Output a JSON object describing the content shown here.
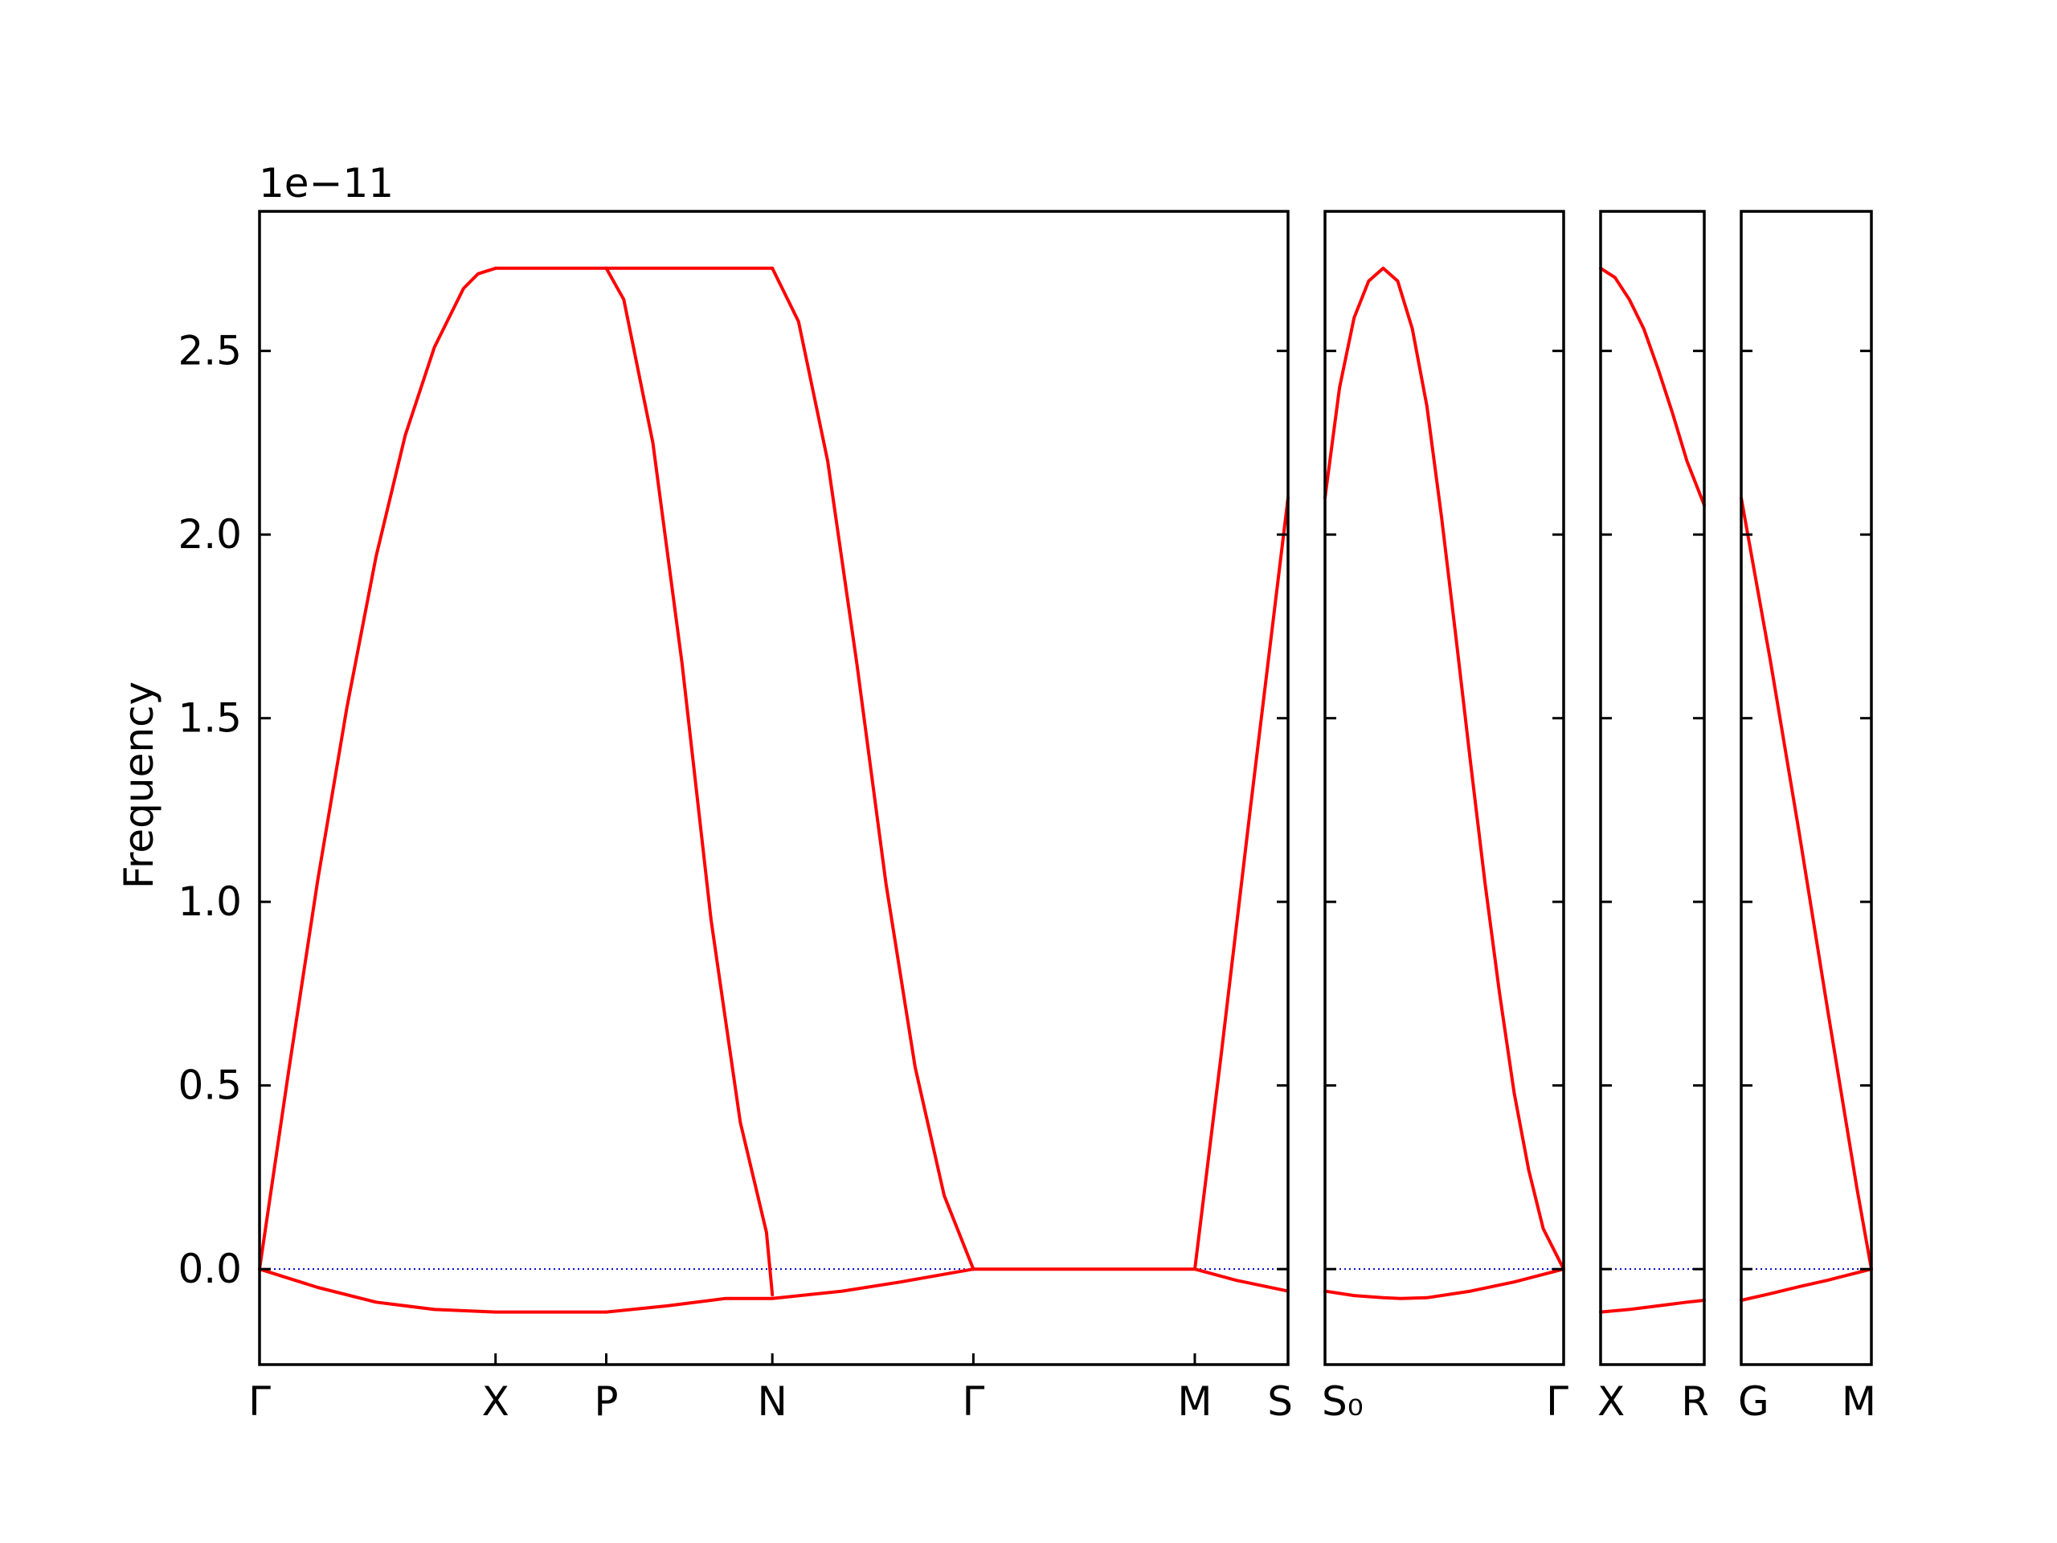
{
  "chart_data": {
    "type": "line",
    "ylabel": "Frequency",
    "y_offset_label": "1e−11",
    "ylim": [
      -0.26,
      2.88
    ],
    "yticks": [
      {
        "value": 0.0,
        "label": "0.0"
      },
      {
        "value": 0.5,
        "label": "0.5"
      },
      {
        "value": 1.0,
        "label": "1.0"
      },
      {
        "value": 1.5,
        "label": "1.5"
      },
      {
        "value": 2.0,
        "label": "2.0"
      },
      {
        "value": 2.5,
        "label": "2.5"
      }
    ],
    "line_color": "#ff0000",
    "zero_line_color": "#0000cc",
    "panels": [
      {
        "x_range": [
          0,
          3.53
        ],
        "ticks": [
          {
            "x": 0.0,
            "label": "Γ"
          },
          {
            "x": 0.81,
            "label": "X"
          },
          {
            "x": 1.19,
            "label": "P"
          },
          {
            "x": 1.76,
            "label": "N"
          },
          {
            "x": 2.45,
            "label": "Γ"
          },
          {
            "x": 3.21,
            "label": "M"
          },
          {
            "x": 3.53,
            "label": "S"
          }
        ],
        "series": [
          {
            "x": [
              0,
              0.1,
              0.2,
              0.3,
              0.4,
              0.5,
              0.6,
              0.7,
              0.75,
              0.81
            ],
            "y": [
              0,
              0.54,
              1.06,
              1.53,
              1.94,
              2.27,
              2.51,
              2.67,
              2.71,
              2.725
            ]
          },
          {
            "x": [
              0.81,
              1.19
            ],
            "y": [
              2.725,
              2.725
            ]
          },
          {
            "x": [
              1.19,
              1.25,
              1.35,
              1.45,
              1.55,
              1.65,
              1.74,
              1.76
            ],
            "y": [
              2.725,
              2.64,
              2.25,
              1.65,
              0.95,
              0.4,
              0.1,
              -0.07
            ]
          },
          {
            "x": [
              1.19,
              1.76
            ],
            "y": [
              2.725,
              2.725
            ]
          },
          {
            "x": [
              1.76,
              1.85,
              1.95,
              2.05,
              2.15,
              2.25,
              2.35,
              2.45
            ],
            "y": [
              2.725,
              2.58,
              2.2,
              1.65,
              1.05,
              0.55,
              0.2,
              0.0
            ]
          },
          {
            "x": [
              2.45,
              3.21
            ],
            "y": [
              0.0,
              0.0
            ]
          },
          {
            "x": [
              3.21,
              3.3,
              3.4,
              3.53
            ],
            "y": [
              0.0,
              0.58,
              1.25,
              2.1
            ]
          },
          {
            "x": [
              0,
              0.2,
              0.4,
              0.6,
              0.81,
              1.19,
              1.4,
              1.6,
              1.76,
              2.0,
              2.2,
              2.45
            ],
            "y": [
              0,
              -0.05,
              -0.09,
              -0.11,
              -0.117,
              -0.117,
              -0.1,
              -0.08,
              -0.08,
              -0.06,
              -0.035,
              0.0
            ]
          },
          {
            "x": [
              3.21,
              3.35,
              3.53
            ],
            "y": [
              0.0,
              -0.03,
              -0.06
            ]
          }
        ]
      },
      {
        "x_range": [
          0,
          0.82
        ],
        "ticks": [
          {
            "x": 0.0,
            "label": "S₀"
          },
          {
            "x": 0.82,
            "label": "Γ"
          }
        ],
        "series": [
          {
            "x": [
              0,
              0.05,
              0.1,
              0.15,
              0.2,
              0.25,
              0.3,
              0.35,
              0.4,
              0.45,
              0.5,
              0.55,
              0.6,
              0.65,
              0.7,
              0.75,
              0.82
            ],
            "y": [
              2.1,
              2.4,
              2.59,
              2.69,
              2.725,
              2.69,
              2.56,
              2.35,
              2.05,
              1.72,
              1.38,
              1.05,
              0.75,
              0.48,
              0.27,
              0.11,
              0.0
            ]
          },
          {
            "x": [
              0,
              0.1,
              0.2,
              0.26,
              0.35,
              0.5,
              0.65,
              0.82
            ],
            "y": [
              -0.06,
              -0.072,
              -0.078,
              -0.08,
              -0.078,
              -0.06,
              -0.035,
              0.0
            ]
          }
        ]
      },
      {
        "x_range": [
          0,
          0.36
        ],
        "ticks": [
          {
            "x": 0.0,
            "label": "X"
          },
          {
            "x": 0.36,
            "label": "R"
          }
        ],
        "series": [
          {
            "x": [
              0,
              0.05,
              0.1,
              0.15,
              0.2,
              0.25,
              0.3,
              0.36
            ],
            "y": [
              2.725,
              2.7,
              2.64,
              2.56,
              2.45,
              2.33,
              2.2,
              2.08
            ]
          },
          {
            "x": [
              0,
              0.1,
              0.2,
              0.3,
              0.36
            ],
            "y": [
              -0.117,
              -0.11,
              -0.1,
              -0.09,
              -0.085
            ]
          }
        ]
      },
      {
        "x_range": [
          0,
          0.45
        ],
        "ticks": [
          {
            "x": 0.0,
            "label": "G"
          },
          {
            "x": 0.45,
            "label": "M"
          }
        ],
        "series": [
          {
            "x": [
              0,
              0.1,
              0.2,
              0.3,
              0.4,
              0.45
            ],
            "y": [
              2.1,
              1.66,
              1.19,
              0.7,
              0.22,
              0.0
            ]
          },
          {
            "x": [
              0,
              0.1,
              0.2,
              0.3,
              0.45
            ],
            "y": [
              -0.085,
              -0.067,
              -0.048,
              -0.03,
              0.0
            ]
          }
        ]
      }
    ]
  }
}
